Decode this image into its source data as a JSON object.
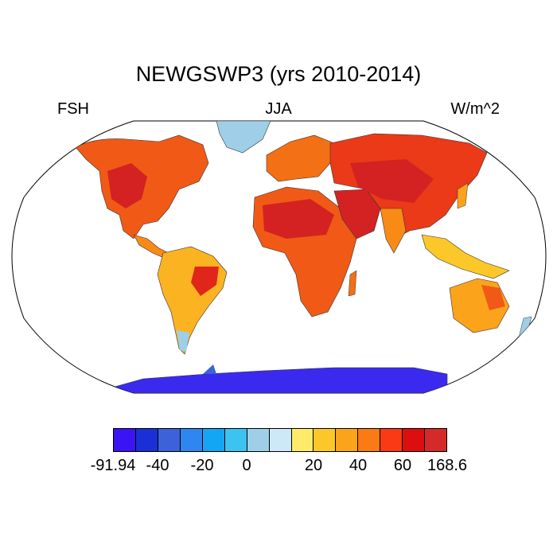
{
  "title": "NEWGSWP3 (yrs 2010-2014)",
  "left_label": "FSH",
  "center_label": "JJA",
  "right_label": "W/m^2",
  "colorbar": {
    "colors": [
      "#3a14f2",
      "#1a2fd6",
      "#3b62d9",
      "#2f86f0",
      "#14a6f5",
      "#3cc3f0",
      "#9fcfe8",
      "#cde8f6",
      "#ffeb6b",
      "#fcc829",
      "#fca31c",
      "#fa7a14",
      "#fa3a14",
      "#dc0e0e",
      "#d42a2a"
    ],
    "labels": [
      {
        "text": "-91.94",
        "boundary": 0
      },
      {
        "text": "-40",
        "boundary": 2
      },
      {
        "text": "-20",
        "boundary": 4
      },
      {
        "text": "0",
        "boundary": 6
      },
      {
        "text": "20",
        "boundary": 9
      },
      {
        "text": "40",
        "boundary": 11
      },
      {
        "text": "60",
        "boundary": 13
      },
      {
        "text": "168.6",
        "boundary": 15
      }
    ]
  },
  "chart_data": {
    "type": "heatmap",
    "projection": "robinson",
    "variable": "FSH",
    "season": "JJA",
    "units": "W/m^2",
    "range": [
      -91.94,
      168.6
    ],
    "regions": [
      {
        "region": "North America",
        "value": 50
      },
      {
        "region": "Greenland",
        "value": -5
      },
      {
        "region": "South America",
        "value": 35
      },
      {
        "region": "Europe",
        "value": 45
      },
      {
        "region": "Africa",
        "value": 65
      },
      {
        "region": "Arabia / Middle East",
        "value": 75
      },
      {
        "region": "Asia",
        "value": 60
      },
      {
        "region": "Southeast Asia",
        "value": 20
      },
      {
        "region": "Australia",
        "value": 35
      },
      {
        "region": "Antarctica",
        "value": -70
      }
    ]
  }
}
